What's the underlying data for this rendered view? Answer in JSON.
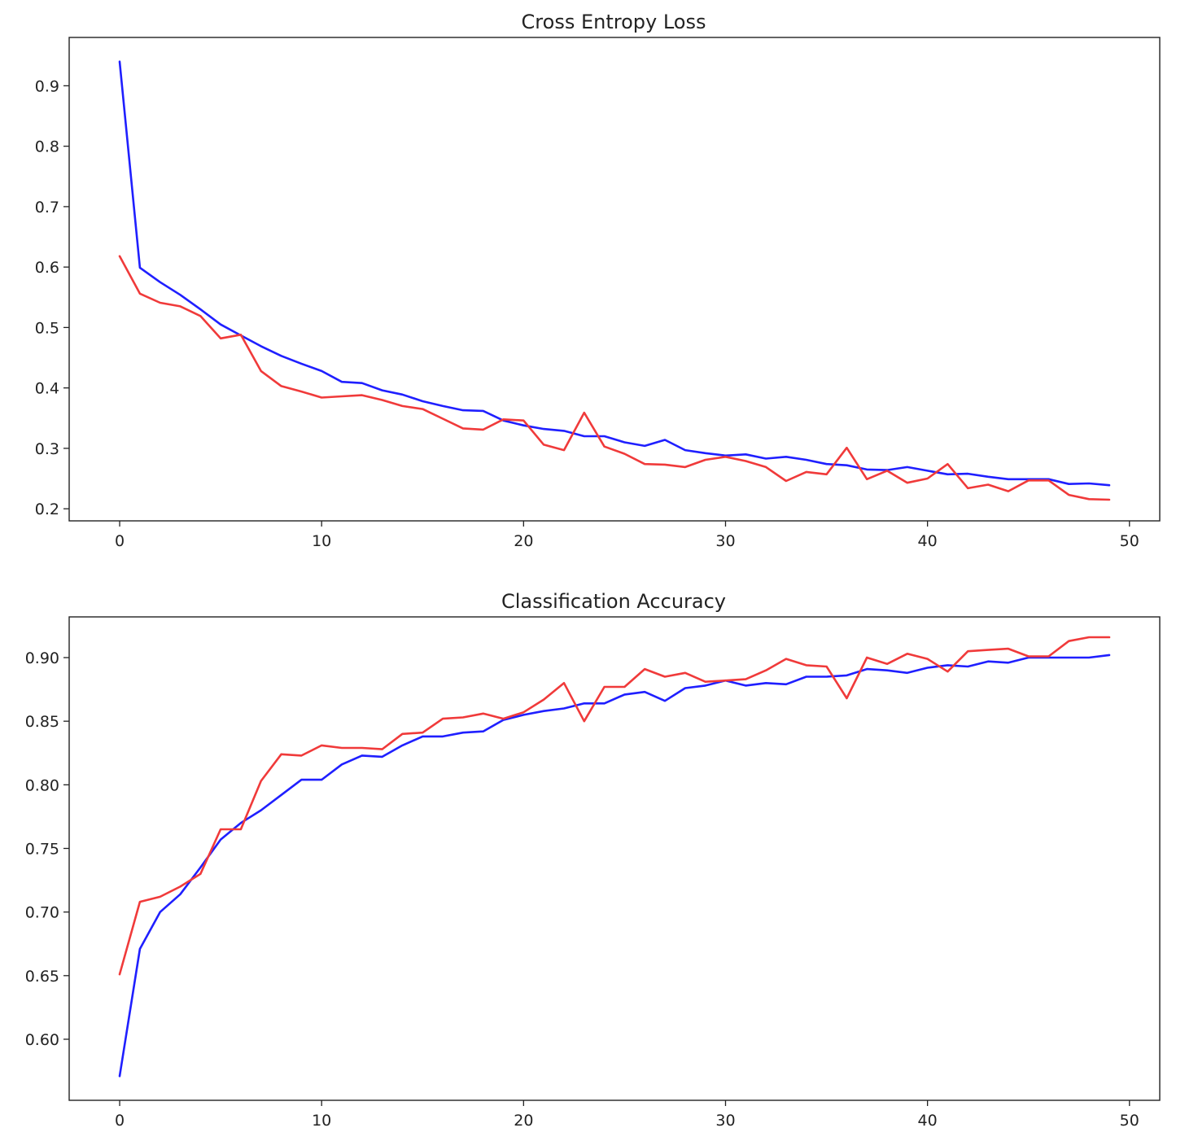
{
  "chart_data": [
    {
      "type": "line",
      "title": "Cross Entropy Loss",
      "xlabel": "",
      "ylabel": "",
      "xlim": [
        -2.5,
        51.5
      ],
      "ylim": [
        0.18,
        0.98
      ],
      "xticks": [
        0,
        10,
        20,
        30,
        40,
        50
      ],
      "yticks": [
        0.2,
        0.3,
        0.4,
        0.5,
        0.6,
        0.7,
        0.8,
        0.9
      ],
      "tick_decimals": 1,
      "grid": false,
      "x": [
        0,
        1,
        2,
        3,
        4,
        5,
        6,
        7,
        8,
        9,
        10,
        11,
        12,
        13,
        14,
        15,
        16,
        17,
        18,
        19,
        20,
        21,
        22,
        23,
        24,
        25,
        26,
        27,
        28,
        29,
        30,
        31,
        32,
        33,
        34,
        35,
        36,
        37,
        38,
        39,
        40,
        41,
        42,
        43,
        44,
        45,
        46,
        47,
        48,
        49
      ],
      "series": [
        {
          "color": "#1f1fff",
          "values": [
            0.94,
            0.599,
            0.575,
            0.554,
            0.53,
            0.505,
            0.487,
            0.469,
            0.453,
            0.44,
            0.428,
            0.41,
            0.408,
            0.396,
            0.389,
            0.378,
            0.37,
            0.363,
            0.362,
            0.346,
            0.338,
            0.332,
            0.329,
            0.32,
            0.32,
            0.31,
            0.304,
            0.314,
            0.297,
            0.292,
            0.288,
            0.29,
            0.283,
            0.286,
            0.281,
            0.274,
            0.272,
            0.265,
            0.264,
            0.269,
            0.263,
            0.257,
            0.258,
            0.253,
            0.249,
            0.249,
            0.249,
            0.241,
            0.242,
            0.239
          ]
        },
        {
          "color": "#f03a3a",
          "values": [
            0.618,
            0.556,
            0.541,
            0.535,
            0.519,
            0.482,
            0.488,
            0.428,
            0.403,
            0.394,
            0.384,
            0.386,
            0.388,
            0.38,
            0.37,
            0.365,
            0.349,
            0.333,
            0.331,
            0.348,
            0.346,
            0.306,
            0.297,
            0.359,
            0.303,
            0.291,
            0.274,
            0.273,
            0.269,
            0.281,
            0.286,
            0.279,
            0.269,
            0.246,
            0.261,
            0.257,
            0.301,
            0.249,
            0.263,
            0.243,
            0.25,
            0.274,
            0.234,
            0.24,
            0.229,
            0.247,
            0.247,
            0.223,
            0.216,
            0.215
          ]
        }
      ]
    },
    {
      "type": "line",
      "title": "Classification Accuracy",
      "xlabel": "",
      "ylabel": "",
      "xlim": [
        -2.5,
        51.5
      ],
      "ylim": [
        0.552,
        0.932
      ],
      "xticks": [
        0,
        10,
        20,
        30,
        40,
        50
      ],
      "yticks": [
        0.6,
        0.65,
        0.7,
        0.75,
        0.8,
        0.85,
        0.9
      ],
      "tick_decimals": 2,
      "grid": false,
      "x": [
        0,
        1,
        2,
        3,
        4,
        5,
        6,
        7,
        8,
        9,
        10,
        11,
        12,
        13,
        14,
        15,
        16,
        17,
        18,
        19,
        20,
        21,
        22,
        23,
        24,
        25,
        26,
        27,
        28,
        29,
        30,
        31,
        32,
        33,
        34,
        35,
        36,
        37,
        38,
        39,
        40,
        41,
        42,
        43,
        44,
        45,
        46,
        47,
        48,
        49
      ],
      "series": [
        {
          "color": "#1f1fff",
          "values": [
            0.571,
            0.671,
            0.7,
            0.714,
            0.735,
            0.757,
            0.77,
            0.78,
            0.792,
            0.804,
            0.804,
            0.816,
            0.823,
            0.822,
            0.831,
            0.838,
            0.838,
            0.841,
            0.842,
            0.851,
            0.855,
            0.858,
            0.86,
            0.864,
            0.864,
            0.871,
            0.873,
            0.866,
            0.876,
            0.878,
            0.882,
            0.878,
            0.88,
            0.879,
            0.885,
            0.885,
            0.886,
            0.891,
            0.89,
            0.888,
            0.892,
            0.894,
            0.893,
            0.897,
            0.896,
            0.9,
            0.9,
            0.9,
            0.9,
            0.902
          ]
        },
        {
          "color": "#f03a3a",
          "values": [
            0.651,
            0.708,
            0.712,
            0.72,
            0.73,
            0.765,
            0.765,
            0.803,
            0.824,
            0.823,
            0.831,
            0.829,
            0.829,
            0.828,
            0.84,
            0.841,
            0.852,
            0.853,
            0.856,
            0.852,
            0.857,
            0.867,
            0.88,
            0.85,
            0.877,
            0.877,
            0.891,
            0.885,
            0.888,
            0.881,
            0.882,
            0.883,
            0.89,
            0.899,
            0.894,
            0.893,
            0.868,
            0.9,
            0.895,
            0.903,
            0.899,
            0.889,
            0.905,
            0.906,
            0.907,
            0.901,
            0.901,
            0.913,
            0.916,
            0.916
          ]
        }
      ]
    }
  ]
}
